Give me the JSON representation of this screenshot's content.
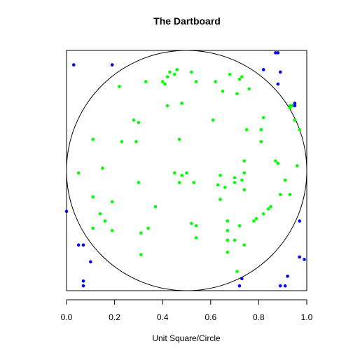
{
  "chart_data": {
    "type": "scatter",
    "title": "The Dartboard",
    "xlabel": "Unit Square/Circle",
    "ylabel": "",
    "xlim": [
      0,
      1
    ],
    "ylim": [
      0,
      1
    ],
    "x_ticks": [
      0.0,
      0.2,
      0.4,
      0.6,
      0.8,
      1.0
    ],
    "x_tick_labels": [
      "0.0",
      "0.2",
      "0.4",
      "0.6",
      "0.8",
      "1.0"
    ],
    "y_axis_visible": false,
    "frame_box": true,
    "circle": {
      "cx": 0.5,
      "cy": 0.5,
      "r": 0.5,
      "color": "#000000"
    },
    "series": [
      {
        "color": "#00ff00",
        "points": [
          [
            0.22,
            0.85
          ],
          [
            0.33,
            0.87
          ],
          [
            0.4,
            0.87
          ],
          [
            0.41,
            0.86
          ],
          [
            0.42,
            0.89
          ],
          [
            0.43,
            0.91
          ],
          [
            0.45,
            0.9
          ],
          [
            0.46,
            0.92
          ],
          [
            0.52,
            0.91
          ],
          [
            0.54,
            0.87
          ],
          [
            0.62,
            0.87
          ],
          [
            0.65,
            0.83
          ],
          [
            0.68,
            0.9
          ],
          [
            0.71,
            0.82
          ],
          [
            0.72,
            0.88
          ],
          [
            0.73,
            0.89
          ],
          [
            0.76,
            0.84
          ],
          [
            0.42,
            0.77
          ],
          [
            0.48,
            0.78
          ],
          [
            0.28,
            0.71
          ],
          [
            0.3,
            0.7
          ],
          [
            0.11,
            0.63
          ],
          [
            0.23,
            0.62
          ],
          [
            0.29,
            0.62
          ],
          [
            0.47,
            0.63
          ],
          [
            0.61,
            0.71
          ],
          [
            0.75,
            0.67
          ],
          [
            0.81,
            0.67
          ],
          [
            0.82,
            0.72
          ],
          [
            0.81,
            0.62
          ],
          [
            0.93,
            0.76
          ],
          [
            0.93,
            0.77
          ],
          [
            0.94,
            0.77
          ],
          [
            0.95,
            0.71
          ],
          [
            0.97,
            0.67
          ],
          [
            0.74,
            0.54
          ],
          [
            0.87,
            0.54
          ],
          [
            0.88,
            0.53
          ],
          [
            0.96,
            0.52
          ],
          [
            0.05,
            0.49
          ],
          [
            0.15,
            0.51
          ],
          [
            0.45,
            0.49
          ],
          [
            0.48,
            0.48
          ],
          [
            0.5,
            0.49
          ],
          [
            0.53,
            0.45
          ],
          [
            0.64,
            0.48
          ],
          [
            0.7,
            0.47
          ],
          [
            0.7,
            0.45
          ],
          [
            0.74,
            0.49
          ],
          [
            0.91,
            0.46
          ],
          [
            0.3,
            0.45
          ],
          [
            0.11,
            0.39
          ],
          [
            0.19,
            0.37
          ],
          [
            0.37,
            0.35
          ],
          [
            0.47,
            0.45
          ],
          [
            0.63,
            0.44
          ],
          [
            0.66,
            0.43
          ],
          [
            0.64,
            0.38
          ],
          [
            0.73,
            0.46
          ],
          [
            0.74,
            0.42
          ],
          [
            0.89,
            0.4
          ],
          [
            0.93,
            0.4
          ],
          [
            0.14,
            0.32
          ],
          [
            0.16,
            0.29
          ],
          [
            0.11,
            0.26
          ],
          [
            0.19,
            0.25
          ],
          [
            0.31,
            0.24
          ],
          [
            0.34,
            0.26
          ],
          [
            0.52,
            0.28
          ],
          [
            0.54,
            0.27
          ],
          [
            0.54,
            0.22
          ],
          [
            0.67,
            0.29
          ],
          [
            0.67,
            0.25
          ],
          [
            0.67,
            0.21
          ],
          [
            0.7,
            0.21
          ],
          [
            0.72,
            0.27
          ],
          [
            0.78,
            0.29
          ],
          [
            0.79,
            0.3
          ],
          [
            0.82,
            0.32
          ],
          [
            0.84,
            0.34
          ],
          [
            0.85,
            0.35
          ],
          [
            0.67,
            0.16
          ],
          [
            0.74,
            0.19
          ],
          [
            0.31,
            0.15
          ],
          [
            0.71,
            0.08
          ]
        ]
      },
      {
        "color": "#0000ff",
        "points": [
          [
            0.03,
            0.94
          ],
          [
            0.19,
            0.94
          ],
          [
            0.87,
            0.99
          ],
          [
            0.88,
            0.99
          ],
          [
            0.82,
            0.92
          ],
          [
            0.89,
            0.91
          ],
          [
            0.88,
            0.86
          ],
          [
            0.95,
            0.78
          ],
          [
            0.95,
            0.77
          ],
          [
            0.0,
            0.33
          ],
          [
            0.05,
            0.19
          ],
          [
            0.07,
            0.19
          ],
          [
            0.1,
            0.12
          ],
          [
            0.07,
            0.04
          ],
          [
            0.07,
            0.02
          ],
          [
            0.72,
            0.02
          ],
          [
            0.73,
            0.05
          ],
          [
            0.89,
            0.02
          ],
          [
            0.91,
            0.02
          ],
          [
            0.92,
            0.06
          ],
          [
            0.97,
            0.14
          ],
          [
            0.99,
            0.13
          ],
          [
            0.97,
            0.29
          ]
        ]
      }
    ]
  }
}
